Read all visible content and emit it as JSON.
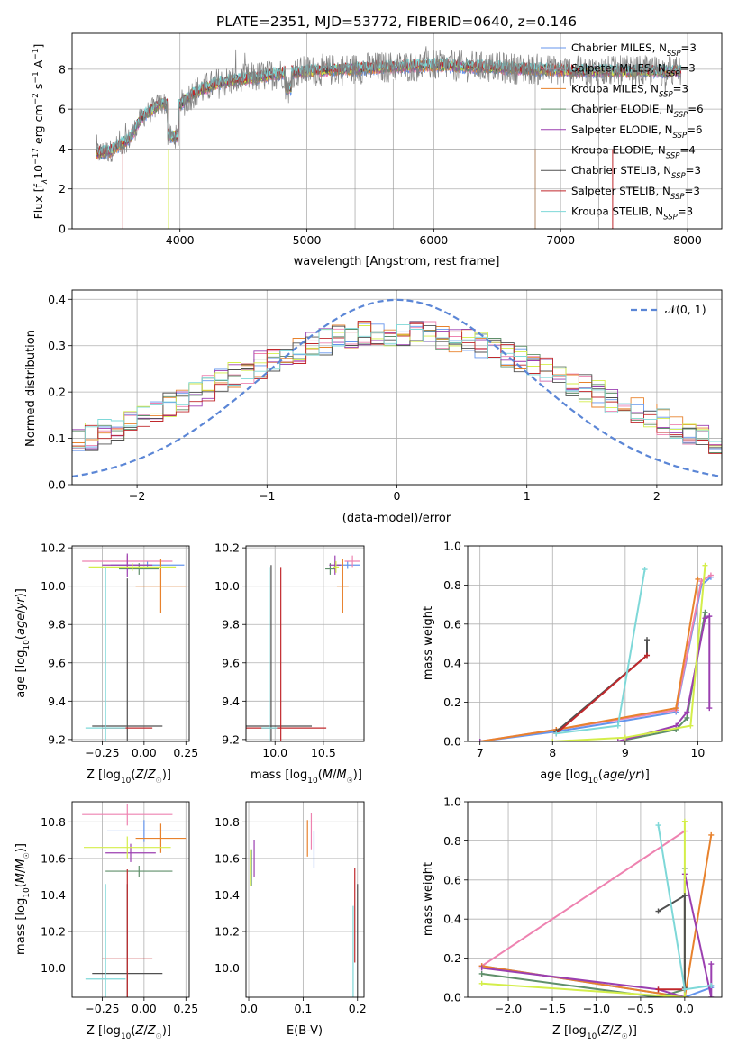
{
  "figure": {
    "title": "PLATE=2351, MJD=53772, FIBERID=0640, z=0.146"
  },
  "models": [
    {
      "name": "Chabrier MILES",
      "nssp": "3",
      "color": "#6495ed"
    },
    {
      "name": "Salpeter MILES",
      "nssp": "3",
      "color": "#ee82b0"
    },
    {
      "name": "Kroupa MILES",
      "nssp": "3",
      "color": "#e8822d"
    },
    {
      "name": "Chabrier ELODIE",
      "nssp": "6",
      "color": "#5f8f6a"
    },
    {
      "name": "Salpeter ELODIE",
      "nssp": "6",
      "color": "#9b3fb0"
    },
    {
      "name": "Kroupa ELODIE",
      "nssp": "4",
      "color": "#d4ee4a"
    },
    {
      "name": "Chabrier STELIB",
      "nssp": "3",
      "color": "#505050"
    },
    {
      "name": "Salpeter STELIB",
      "nssp": "3",
      "color": "#c0282c"
    },
    {
      "name": "Kroupa STELIB",
      "nssp": "3",
      "color": "#7ed8d8"
    }
  ],
  "legend_nssp_prefix": "N",
  "legend_nssp_sub": "SSP",
  "gaussian_label": "𝒩(0, 1)",
  "chart_data": [
    {
      "id": "spectrum",
      "type": "line",
      "title": "PLATE=2351, MJD=53772, FIBERID=0640, z=0.146",
      "xlabel": "wavelength [Angstrom, rest frame]",
      "ylabel_parts": [
        "Flux [f",
        "λ",
        "10",
        "−17",
        " erg cm",
        "−2",
        " s",
        "−1",
        " A",
        "−1",
        "]"
      ],
      "xlim": [
        3150,
        8270
      ],
      "ylim": [
        0,
        9.8
      ],
      "xticks": [
        4000,
        5000,
        6000,
        7000,
        8000
      ],
      "yticks": [
        0,
        2,
        4,
        6,
        8
      ],
      "legend_position": "upper right",
      "continuum": {
        "x": [
          3340,
          3450,
          3600,
          3700,
          3850,
          4000,
          4100,
          4300,
          4500,
          4800,
          5000,
          5300,
          5600,
          6000,
          6400,
          6800,
          7200,
          7500
        ],
        "y": [
          3.8,
          3.9,
          4.5,
          5.6,
          6.3,
          6.2,
          6.8,
          7.3,
          7.5,
          7.8,
          7.9,
          8.0,
          8.1,
          8.2,
          8.1,
          8.0,
          7.9,
          7.9
        ]
      }
    },
    {
      "id": "residuals",
      "type": "histogram",
      "xlabel": "(data-model)/error",
      "ylabel": "Normed distribution",
      "xlim": [
        -2.5,
        2.5
      ],
      "ylim": [
        0,
        0.42
      ],
      "xticks": [
        -2,
        -1,
        0,
        1,
        2
      ],
      "yticks": [
        0.0,
        0.1,
        0.2,
        0.3,
        0.4
      ],
      "bin_width": 0.1,
      "reference": {
        "type": "gaussian",
        "mean": 0,
        "sigma": 1,
        "label": "𝒩(0, 1)"
      },
      "legend_position": "upper right"
    },
    {
      "id": "age_vs_Z",
      "type": "errorbar",
      "xlabel": "Z [log10(Z/Z☉)]",
      "ylabel": "age  [log10(age/yr)]",
      "xlim": [
        -0.43,
        0.27
      ],
      "ylim": [
        9.19,
        10.21
      ],
      "xticks": [
        -0.25,
        0.0,
        0.25
      ],
      "yticks": [
        9.2,
        9.4,
        9.6,
        9.8,
        10.0,
        10.2
      ],
      "points": [
        {
          "x": 0.02,
          "y": 10.11,
          "xerr": 0.22,
          "yerr": 0.02,
          "color": "#6495ed"
        },
        {
          "x": -0.1,
          "y": 10.13,
          "xerr": 0.27,
          "yerr": 0.03,
          "color": "#ee82b0"
        },
        {
          "x": 0.1,
          "y": 10.0,
          "xerr": 0.15,
          "yerr": 0.14,
          "color": "#e8822d"
        },
        {
          "x": -0.03,
          "y": 10.09,
          "xerr": 0.12,
          "yerr": 0.03,
          "color": "#5f8f6a"
        },
        {
          "x": -0.1,
          "y": 10.11,
          "xerr": 0.15,
          "yerr": 0.06,
          "color": "#9b3fb0"
        },
        {
          "x": -0.07,
          "y": 10.1,
          "xerr": 0.26,
          "yerr": 0.02,
          "color": "#d4ee4a"
        },
        {
          "x": -0.1,
          "y": 9.27,
          "xerr": 0.21,
          "yerr": 0.77,
          "color": "#505050"
        },
        {
          "x": -0.1,
          "y": 9.26,
          "xerr": 0.15,
          "yerr": 0.0,
          "color": "#c0282c"
        },
        {
          "x": -0.23,
          "y": 9.26,
          "xerr": 0.12,
          "yerr": 0.84,
          "color": "#7ed8d8"
        }
      ]
    },
    {
      "id": "age_vs_mass",
      "type": "errorbar",
      "xlabel": "mass [log10(M/M☉)]",
      "ylabel": "",
      "xlim": [
        9.7,
        10.92
      ],
      "ylim": [
        9.19,
        10.21
      ],
      "xticks": [
        10.0,
        10.5
      ],
      "yticks": [
        9.2,
        9.4,
        9.6,
        9.8,
        10.0,
        10.2
      ],
      "points": [
        {
          "x": 10.75,
          "y": 10.11,
          "xerr": 0.13,
          "yerr": 0.02,
          "color": "#6495ed"
        },
        {
          "x": 10.8,
          "y": 10.13,
          "xerr": 0.08,
          "yerr": 0.03,
          "color": "#ee82b0"
        },
        {
          "x": 10.7,
          "y": 10.0,
          "xerr": 0.06,
          "yerr": 0.14,
          "color": "#e8822d"
        },
        {
          "x": 10.57,
          "y": 10.09,
          "xerr": 0.05,
          "yerr": 0.03,
          "color": "#5f8f6a"
        },
        {
          "x": 10.62,
          "y": 10.11,
          "xerr": 0.06,
          "yerr": 0.05,
          "color": "#9b3fb0"
        },
        {
          "x": 10.63,
          "y": 10.1,
          "xerr": 0.03,
          "yerr": 0.03,
          "color": "#d4ee4a"
        },
        {
          "x": 9.96,
          "y": 9.27,
          "xerr": 0.42,
          "yerr": 0.84,
          "color": "#505050"
        },
        {
          "x": 10.06,
          "y": 9.26,
          "xerr": 0.47,
          "yerr": 0.84,
          "color": "#c0282c"
        },
        {
          "x": 9.94,
          "y": 9.26,
          "xerr": 0.08,
          "yerr": 0.84,
          "color": "#7ed8d8"
        }
      ]
    },
    {
      "id": "weight_vs_age",
      "type": "line",
      "xlabel": "age  [log10(age/yr)]",
      "ylabel": "mass weight",
      "xlim": [
        6.83,
        10.33
      ],
      "ylim": [
        0,
        1.0
      ],
      "xticks": [
        7,
        8,
        9,
        10
      ],
      "yticks": [
        0.0,
        0.2,
        0.4,
        0.6,
        0.8,
        1.0
      ],
      "series": [
        {
          "color": "#6495ed",
          "x": [
            7.0,
            8.05,
            8.9,
            9.7,
            10.05,
            10.18
          ],
          "y": [
            0.0,
            0.05,
            0.1,
            0.15,
            0.8,
            0.84
          ]
        },
        {
          "color": "#ee82b0",
          "x": [
            7.0,
            8.05,
            9.7,
            10.05,
            10.18
          ],
          "y": [
            0.0,
            0.06,
            0.16,
            0.82,
            0.85
          ]
        },
        {
          "color": "#e8822d",
          "x": [
            7.0,
            8.05,
            9.7,
            10.0
          ],
          "y": [
            0.0,
            0.06,
            0.17,
            0.83
          ]
        },
        {
          "color": "#5f8f6a",
          "x": [
            7.0,
            8.9,
            9.7,
            9.85,
            10.1
          ],
          "y": [
            0.0,
            0.0,
            0.06,
            0.12,
            0.66
          ]
        },
        {
          "color": "#9b3fb0",
          "x": [
            7.0,
            8.9,
            9.7,
            9.85,
            10.1,
            10.16,
            10.16
          ],
          "y": [
            0.0,
            0.0,
            0.08,
            0.15,
            0.63,
            0.64,
            0.17
          ]
        },
        {
          "color": "#d4ee4a",
          "x": [
            8.0,
            9.0,
            9.9,
            10.1
          ],
          "y": [
            0.0,
            0.02,
            0.08,
            0.9
          ]
        },
        {
          "color": "#505050",
          "x": [
            8.05,
            9.3,
            9.3
          ],
          "y": [
            0.05,
            0.44,
            0.52
          ]
        },
        {
          "color": "#c0282c",
          "x": [
            8.05,
            9.3
          ],
          "y": [
            0.04,
            0.44
          ]
        },
        {
          "color": "#7ed8d8",
          "x": [
            8.05,
            8.9,
            9.27
          ],
          "y": [
            0.04,
            0.08,
            0.88
          ]
        }
      ]
    },
    {
      "id": "mass_vs_Z",
      "type": "errorbar",
      "xlabel": "Z [log10(Z/Z☉)]",
      "ylabel": "mass [log10(M/M☉)]",
      "xlim": [
        -0.43,
        0.27
      ],
      "ylim": [
        9.84,
        10.91
      ],
      "xticks": [
        -0.25,
        0.0,
        0.25
      ],
      "yticks": [
        10.0,
        10.2,
        10.4,
        10.6,
        10.8
      ],
      "points": [
        {
          "x": 0.0,
          "y": 10.75,
          "xerr": 0.22,
          "yerr": 0.06,
          "color": "#6495ed"
        },
        {
          "x": -0.1,
          "y": 10.84,
          "xerr": 0.27,
          "yerr": 0.06,
          "color": "#ee82b0"
        },
        {
          "x": 0.1,
          "y": 10.71,
          "xerr": 0.15,
          "yerr": 0.08,
          "color": "#e8822d"
        },
        {
          "x": -0.03,
          "y": 10.53,
          "xerr": 0.2,
          "yerr": 0.03,
          "color": "#5f8f6a"
        },
        {
          "x": -0.08,
          "y": 10.63,
          "xerr": 0.15,
          "yerr": 0.05,
          "color": "#9b3fb0"
        },
        {
          "x": -0.1,
          "y": 10.66,
          "xerr": 0.26,
          "yerr": 0.06,
          "color": "#d4ee4a"
        },
        {
          "x": -0.1,
          "y": 9.97,
          "xerr": 0.21,
          "yerr": 0.49,
          "color": "#505050"
        },
        {
          "x": -0.1,
          "y": 10.05,
          "xerr": 0.15,
          "yerr": 0.49,
          "color": "#c0282c"
        },
        {
          "x": -0.23,
          "y": 9.94,
          "xerr": 0.12,
          "yerr": 0.52,
          "color": "#7ed8d8"
        }
      ]
    },
    {
      "id": "mass_vs_ebv",
      "type": "errorbar",
      "xlabel": "E(B-V)",
      "ylabel": "",
      "xlim": [
        -0.005,
        0.212
      ],
      "ylim": [
        9.84,
        10.91
      ],
      "xticks": [
        0.0,
        0.1,
        0.2
      ],
      "yticks": [
        10.0,
        10.2,
        10.4,
        10.6,
        10.8
      ],
      "points": [
        {
          "x": 0.12,
          "y": 10.65,
          "xerr": 0.0,
          "yerr": 0.1,
          "color": "#6495ed"
        },
        {
          "x": 0.115,
          "y": 10.75,
          "xerr": 0.0,
          "yerr": 0.1,
          "color": "#ee82b0"
        },
        {
          "x": 0.108,
          "y": 10.71,
          "xerr": 0.0,
          "yerr": 0.1,
          "color": "#e8822d"
        },
        {
          "x": 0.005,
          "y": 10.55,
          "xerr": 0.0,
          "yerr": 0.1,
          "color": "#5f8f6a"
        },
        {
          "x": 0.01,
          "y": 10.6,
          "xerr": 0.0,
          "yerr": 0.1,
          "color": "#9b3fb0"
        },
        {
          "x": 0.003,
          "y": 10.55,
          "xerr": 0.0,
          "yerr": 0.1,
          "color": "#d4ee4a"
        },
        {
          "x": 0.2,
          "y": 10.0,
          "xerr": 0.0,
          "yerr": 0.46,
          "color": "#505050"
        },
        {
          "x": 0.195,
          "y": 10.29,
          "xerr": 0.0,
          "yerr": 0.26,
          "color": "#c0282c"
        },
        {
          "x": 0.192,
          "y": 9.94,
          "xerr": 0.0,
          "yerr": 0.4,
          "color": "#7ed8d8"
        }
      ]
    },
    {
      "id": "weight_vs_Z",
      "type": "line",
      "xlabel": "Z [log10(Z/Z☉)]",
      "ylabel": "mass weight",
      "xlim": [
        -2.46,
        0.42
      ],
      "ylim": [
        0,
        1.0
      ],
      "xticks": [
        -2.0,
        -1.5,
        -1.0,
        -0.5,
        0.0
      ],
      "yticks": [
        0.0,
        0.2,
        0.4,
        0.6,
        0.8,
        1.0
      ],
      "series": [
        {
          "color": "#6495ed",
          "x": [
            -2.3,
            0.0,
            0.3,
            0.3
          ],
          "y": [
            0.16,
            0.0,
            0.05,
            0.06
          ]
        },
        {
          "color": "#ee82b0",
          "x": [
            -2.3,
            0.0
          ],
          "y": [
            0.16,
            0.85
          ]
        },
        {
          "color": "#e8822d",
          "x": [
            -2.3,
            0.0,
            0.0,
            0.3
          ],
          "y": [
            0.16,
            0.0,
            0.0,
            0.83
          ]
        },
        {
          "color": "#5f8f6a",
          "x": [
            -2.3,
            -0.3,
            0.0,
            0.0
          ],
          "y": [
            0.12,
            0.0,
            0.04,
            0.66
          ]
        },
        {
          "color": "#9b3fb0",
          "x": [
            -2.3,
            -0.3,
            0.0,
            0.0,
            0.3,
            0.3
          ],
          "y": [
            0.15,
            0.04,
            0.0,
            0.63,
            0.0,
            0.17
          ]
        },
        {
          "color": "#d4ee4a",
          "x": [
            -2.3,
            0.0,
            0.0
          ],
          "y": [
            0.07,
            0.0,
            0.9
          ]
        },
        {
          "color": "#505050",
          "x": [
            -0.3,
            0.0,
            0.0
          ],
          "y": [
            0.44,
            0.52,
            0.05
          ]
        },
        {
          "color": "#c0282c",
          "x": [
            -0.3,
            0.0
          ],
          "y": [
            0.04,
            0.04
          ]
        },
        {
          "color": "#7ed8d8",
          "x": [
            -0.3,
            0.0,
            0.3
          ],
          "y": [
            0.88,
            0.04,
            0.06
          ]
        }
      ]
    }
  ]
}
